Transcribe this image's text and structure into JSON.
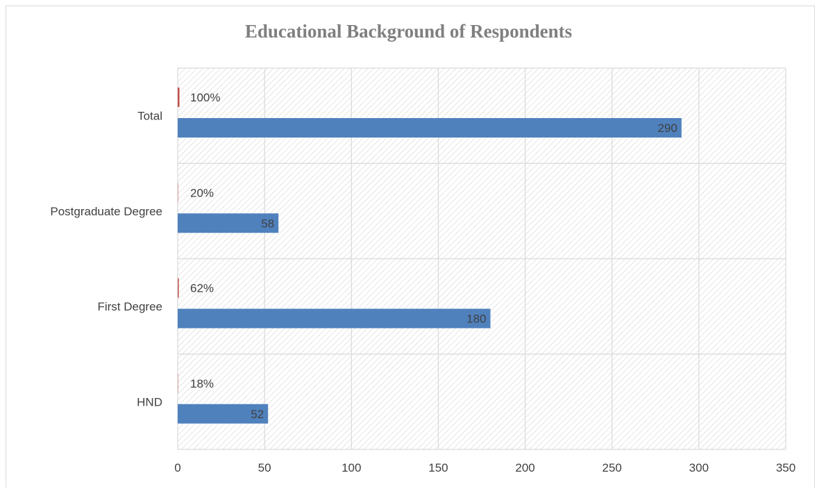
{
  "chart_data": {
    "type": "bar",
    "orientation": "horizontal",
    "title": "Educational Background of Respondents",
    "categories": [
      "HND",
      "First Degree",
      "Postgraduate Degree",
      "Total"
    ],
    "series": [
      {
        "values": [
          52,
          180,
          58,
          290
        ],
        "labels": [
          "52",
          "180",
          "58",
          "290"
        ],
        "color": "#4f81bd"
      },
      {
        "values": [
          0.18,
          0.62,
          0.2,
          1.0
        ],
        "labels": [
          "18%",
          "62%",
          "20%",
          "100%"
        ],
        "color": "#c0504d"
      }
    ],
    "xlim": [
      0,
      350
    ],
    "xticks": [
      0,
      50,
      100,
      150,
      200,
      250,
      300,
      350
    ],
    "xtick_labels": [
      "0",
      "50",
      "100",
      "150",
      "200",
      "250",
      "300",
      "350"
    ],
    "grid": true,
    "plot_background": "hatched"
  }
}
